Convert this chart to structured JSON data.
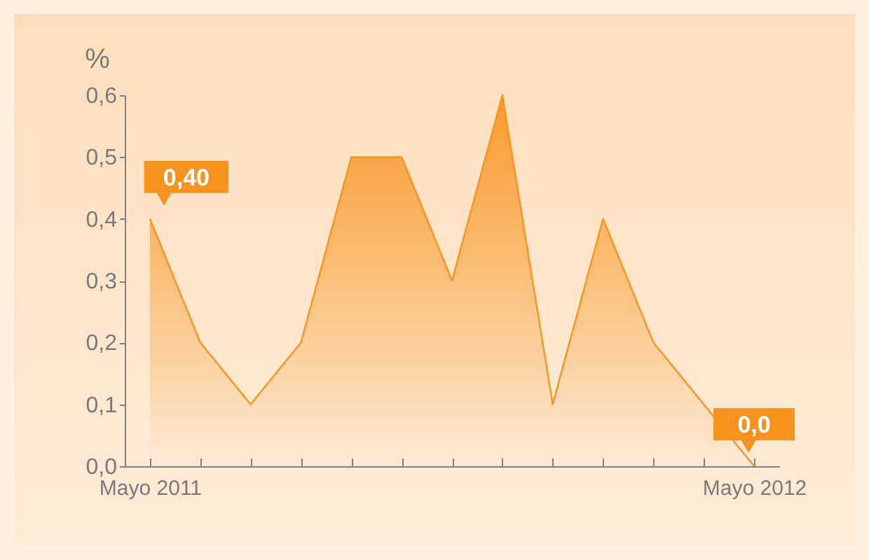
{
  "chart_data": {
    "type": "area",
    "ylabel": "%",
    "categories": [
      "Mayo 2011",
      null,
      null,
      null,
      null,
      null,
      null,
      null,
      null,
      null,
      null,
      null,
      "Mayo 2012"
    ],
    "series": [
      {
        "color": "#f7931e",
        "values": [
          0.4,
          0.2,
          0.1,
          0.2,
          0.5,
          0.5,
          0.3,
          0.6,
          0.1,
          0.4,
          0.2,
          0.1,
          0.0
        ]
      }
    ],
    "ylim": [
      0,
      0.6
    ],
    "yticks": [
      {
        "value": 0,
        "label": "0,0"
      },
      {
        "value": 0.1,
        "label": "0,1"
      },
      {
        "value": 0.2,
        "label": "0,2"
      },
      {
        "value": 0.3,
        "label": "0,3"
      },
      {
        "value": 0.4,
        "label": "0,4"
      },
      {
        "value": 0.5,
        "label": "0,5"
      },
      {
        "value": 0.6,
        "label": "0,6"
      }
    ],
    "annotations": [
      {
        "text": "0,40",
        "x": "Mayo 2011",
        "y": 0.4
      },
      {
        "text": "0,0",
        "x": "Mayo 2012",
        "y": 0
      }
    ],
    "grid": false
  }
}
